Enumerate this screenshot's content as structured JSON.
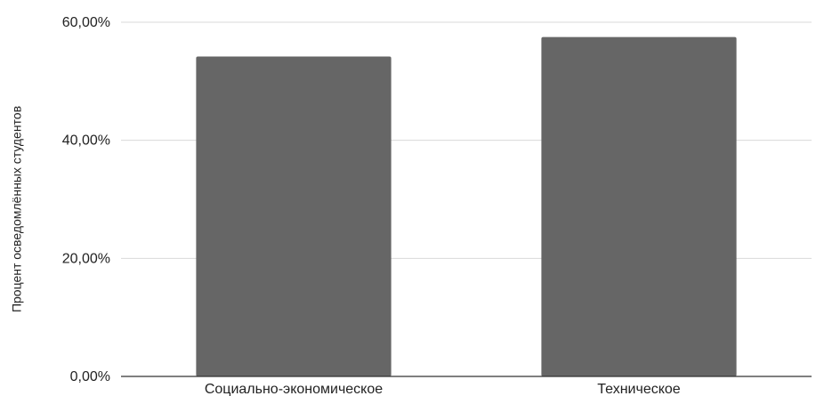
{
  "chart_data": {
    "type": "bar",
    "categories": [
      "Социально-экономическое",
      "Техническое"
    ],
    "values": [
      54.2,
      57.5
    ],
    "title": "",
    "xlabel": "",
    "ylabel": "Процент осведомлённых студентов",
    "ylim": [
      0,
      60
    ],
    "yticks": [
      0,
      20,
      40,
      60
    ],
    "ytick_labels": [
      "0,00%",
      "20,00%",
      "40,00%",
      "60,00%"
    ],
    "grid": true,
    "legend": "none",
    "colors": {
      "bar": "#666666",
      "grid": "#d9d9d9",
      "axis": "#333333"
    }
  }
}
